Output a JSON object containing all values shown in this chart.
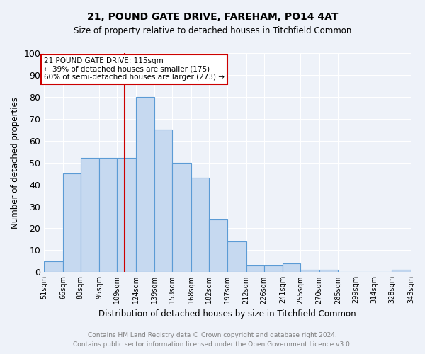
{
  "title1": "21, POUND GATE DRIVE, FAREHAM, PO14 4AT",
  "title2": "Size of property relative to detached houses in Titchfield Common",
  "xlabel": "Distribution of detached houses by size in Titchfield Common",
  "ylabel": "Number of detached properties",
  "bin_edges": [
    51,
    66,
    80,
    95,
    109,
    124,
    139,
    153,
    168,
    182,
    197,
    212,
    226,
    241,
    255,
    270,
    285,
    299,
    314,
    328,
    343
  ],
  "bar_heights": [
    5,
    45,
    52,
    52,
    52,
    80,
    65,
    50,
    43,
    24,
    14,
    3,
    3,
    4,
    1,
    1,
    0,
    0,
    0,
    1
  ],
  "bar_color": "#c6d9f0",
  "bar_edge_color": "#5b9bd5",
  "vline_x": 115,
  "vline_color": "#cc0000",
  "annotation_title": "21 POUND GATE DRIVE: 115sqm",
  "annotation_line1": "← 39% of detached houses are smaller (175)",
  "annotation_line2": "60% of semi-detached houses are larger (273) →",
  "annotation_box_color": "#ffffff",
  "annotation_box_edge": "#cc0000",
  "ylim": [
    0,
    100
  ],
  "yticks": [
    0,
    10,
    20,
    30,
    40,
    50,
    60,
    70,
    80,
    90,
    100
  ],
  "footnote1": "Contains HM Land Registry data © Crown copyright and database right 2024.",
  "footnote2": "Contains public sector information licensed under the Open Government Licence v3.0.",
  "background_color": "#eef2f9"
}
